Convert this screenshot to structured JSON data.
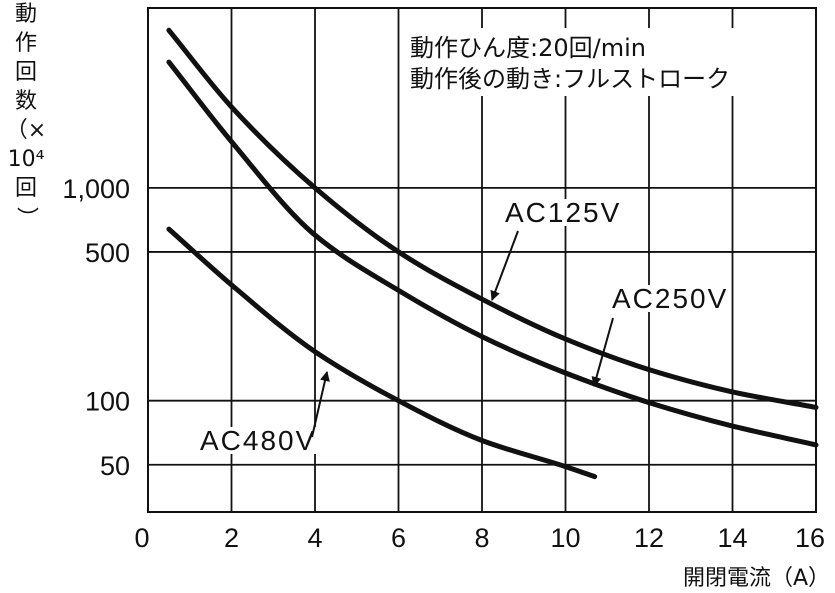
{
  "chart_data": {
    "type": "line",
    "xlabel": "開閉電流（A）",
    "ylabel": "動作回数（×10⁴回）",
    "xlim": [
      0,
      16
    ],
    "ylim": [
      30,
      7000
    ],
    "yscale": "log",
    "grid": true,
    "legend": "inline",
    "line_color": "#111111",
    "xticks": [
      0,
      2,
      4,
      6,
      8,
      10,
      12,
      14,
      16
    ],
    "xtick_labels": [
      "0",
      "2",
      "4",
      "6",
      "8",
      "10",
      "12",
      "14",
      "16"
    ],
    "yticks": [
      50,
      100,
      500,
      1000
    ],
    "ytick_labels": [
      "50",
      "100",
      "500",
      "1,000"
    ],
    "annotations": [
      "動作ひん度:20回/min",
      "動作後の動き:フルストローク"
    ],
    "series": [
      {
        "name": "AC125V",
        "x": [
          0.5,
          2,
          4,
          6,
          8,
          10,
          12,
          14,
          16
        ],
        "values": [
          5500,
          2400,
          1000,
          500,
          300,
          195,
          140,
          110,
          93
        ]
      },
      {
        "name": "AC250V",
        "x": [
          0.5,
          2,
          4,
          6,
          8,
          10,
          12,
          14,
          16
        ],
        "values": [
          3900,
          1650,
          600,
          330,
          200,
          135,
          98,
          76,
          62
        ]
      },
      {
        "name": "AC480V",
        "x": [
          0.5,
          2,
          4,
          6,
          8,
          10,
          10.7
        ],
        "values": [
          640,
          350,
          170,
          100,
          65,
          49,
          44
        ]
      }
    ]
  }
}
